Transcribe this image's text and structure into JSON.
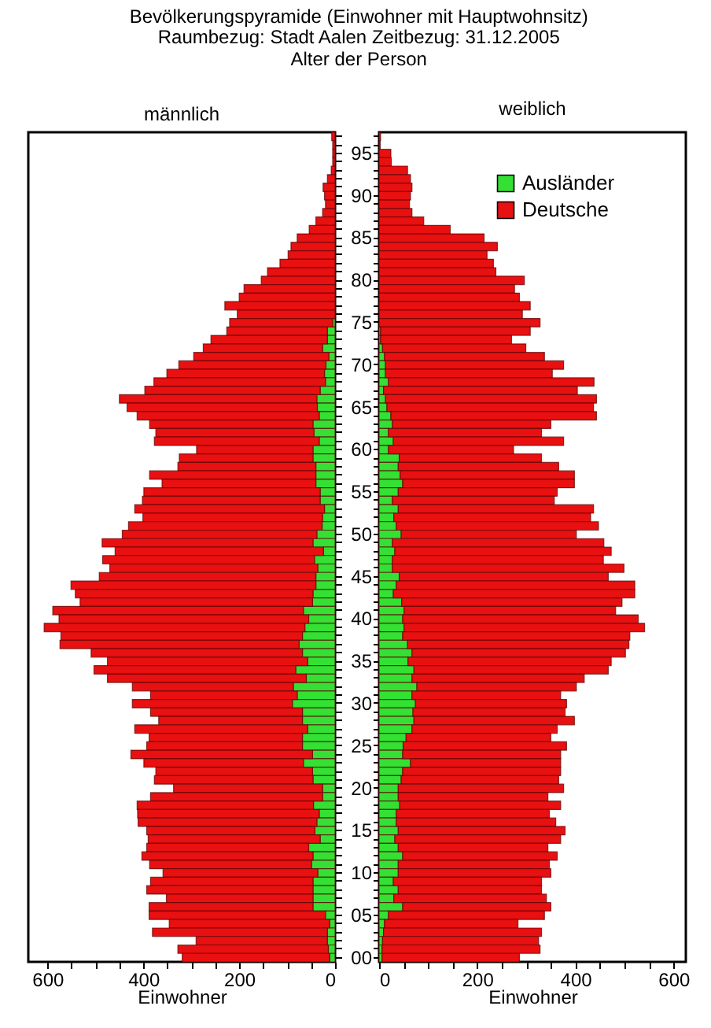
{
  "chart_data": [
    {
      "type": "bar",
      "orientation": "horizontal",
      "stacked": true,
      "title": "Bevölkerungspyramide (Einwohner mit Hauptwohnsitz)",
      "subtitle": "Raumbezug: Stadt Aalen    Zeitbezug: 31.12.2005",
      "annotations": [
        "männlich"
      ],
      "xlabel": "Einwohner",
      "tick_labels": "x",
      "grid": false,
      "legend": false,
      "categories": [
        null,
        null,
        "95",
        null,
        null,
        null,
        null,
        "90",
        null,
        null,
        null,
        null,
        "85",
        null,
        null,
        null,
        null,
        "80",
        null,
        null,
        null,
        null,
        "75",
        null,
        null,
        null,
        null,
        "70",
        null,
        null,
        null,
        null,
        "65",
        null,
        null,
        null,
        null,
        "60",
        null,
        null,
        null,
        null,
        "55",
        null,
        null,
        null,
        null,
        "50",
        null,
        null,
        null,
        null,
        "45",
        null,
        null,
        null,
        null,
        "40",
        null,
        null,
        null,
        null,
        "35",
        null,
        null,
        null,
        null,
        "30",
        null,
        null,
        null,
        null,
        "25",
        null,
        null,
        null,
        null,
        "20",
        null,
        null,
        null,
        null,
        "15",
        null,
        null,
        null,
        null,
        "10",
        null,
        null,
        null,
        null,
        "05",
        null,
        null,
        null,
        null,
        "00"
      ],
      "xlim": [
        640,
        0
      ],
      "xticks": [
        0,
        {
          "value": 50,
          "label": null
        },
        {
          "value": 100,
          "label": null
        },
        {
          "value": 150,
          "label": null
        },
        200,
        {
          "value": 250,
          "label": null
        },
        {
          "value": 300,
          "label": null
        },
        {
          "value": 350,
          "label": null
        },
        400,
        {
          "value": 450,
          "label": null
        },
        {
          "value": 500,
          "label": null
        },
        {
          "value": 550,
          "label": null
        },
        600
      ],
      "series": [
        {
          "color": "#33e033",
          "values": [
            null,
            null,
            null,
            null,
            null,
            null,
            null,
            null,
            null,
            null,
            null,
            null,
            null,
            null,
            null,
            null,
            null,
            null,
            null,
            null,
            null,
            null,
            5,
            16,
            16,
            26,
            13,
            19,
            22,
            20,
            31,
            38,
            37,
            33,
            46,
            44,
            33,
            46,
            46,
            40,
            40,
            40,
            31,
            31,
            22,
            26,
            27,
            38,
            46,
            24,
            43,
            36,
            40,
            40,
            46,
            47,
            66,
            55,
            63,
            68,
            75,
            68,
            57,
            82,
            60,
            87,
            79,
            89,
            68,
            68,
            57,
            68,
            68,
            47,
            66,
            47,
            46,
            26,
            26,
            45,
            33,
            38,
            42,
            31,
            55,
            46,
            49,
            36,
            46,
            46,
            46,
            46,
            20,
            11,
            16,
            16,
            14,
            11
          ]
        },
        {
          "color": "#e81010",
          "values": [
            7,
            5,
            5,
            5,
            8,
            16,
            25,
            22,
            20,
            26,
            40,
            54,
            79,
            92,
            98,
            115,
            141,
            154,
            190,
            200,
            230,
            204,
            215,
            210,
            243,
            249,
            282,
            307,
            329,
            358,
            366,
            412,
            397,
            380,
            341,
            330,
            344,
            243,
            279,
            288,
            347,
            321,
            368,
            371,
            396,
            375,
            404,
            406,
            440,
            435,
            442,
            434,
            452,
            511,
            496,
            485,
            523,
            521,
            544,
            504,
            499,
            441,
            418,
            421,
            415,
            336,
            306,
            334,
            317,
            300,
            361,
            320,
            325,
            379,
            333,
            327,
            331,
            311,
            359,
            368,
            379,
            373,
            351,
            359,
            338,
            357,
            338,
            323,
            339,
            347,
            306,
            342,
            368,
            335,
            365,
            274,
            314,
            308
          ]
        }
      ]
    },
    {
      "type": "bar",
      "orientation": "horizontal",
      "stacked": true,
      "annotations": [
        "weiblich"
      ],
      "ylabel": "Alter der Person",
      "xlabel": "Einwohner",
      "grid": false,
      "legend": "top right",
      "categories": [
        null,
        null,
        "95",
        null,
        null,
        null,
        null,
        "90",
        null,
        null,
        null,
        null,
        "85",
        null,
        null,
        null,
        null,
        "80",
        null,
        null,
        null,
        null,
        "75",
        null,
        null,
        null,
        null,
        "70",
        null,
        null,
        null,
        null,
        "65",
        null,
        null,
        null,
        null,
        "60",
        null,
        null,
        null,
        null,
        "55",
        null,
        null,
        null,
        null,
        "50",
        null,
        null,
        null,
        null,
        "45",
        null,
        null,
        null,
        null,
        "40",
        null,
        null,
        null,
        null,
        "35",
        null,
        null,
        null,
        null,
        "30",
        null,
        null,
        null,
        null,
        "25",
        null,
        null,
        null,
        null,
        "20",
        null,
        null,
        null,
        null,
        "15",
        null,
        null,
        null,
        null,
        "10",
        null,
        null,
        null,
        null,
        "05",
        null,
        null,
        null,
        null,
        "00"
      ],
      "xlim": [
        0,
        625
      ],
      "xticks": [
        0,
        {
          "value": 50,
          "label": null
        },
        {
          "value": 100,
          "label": null
        },
        {
          "value": 150,
          "label": null
        },
        200,
        {
          "value": 250,
          "label": null
        },
        {
          "value": 300,
          "label": null
        },
        {
          "value": 350,
          "label": null
        },
        400,
        {
          "value": 450,
          "label": null
        },
        {
          "value": 500,
          "label": null
        },
        {
          "value": 550,
          "label": null
        },
        600
      ],
      "series": [
        {
          "name": "Ausländer",
          "color": "#33e033",
          "values": [
            null,
            null,
            null,
            null,
            null,
            null,
            null,
            null,
            null,
            null,
            null,
            null,
            null,
            null,
            null,
            null,
            null,
            null,
            null,
            null,
            null,
            null,
            null,
            3,
            3,
            7,
            11,
            13,
            13,
            19,
            9,
            13,
            16,
            24,
            27,
            19,
            29,
            19,
            41,
            39,
            43,
            48,
            39,
            27,
            39,
            30,
            35,
            45,
            27,
            32,
            27,
            27,
            41,
            35,
            29,
            46,
            51,
            48,
            51,
            48,
            58,
            67,
            59,
            71,
            67,
            77,
            67,
            74,
            69,
            71,
            67,
            55,
            49,
            48,
            64,
            48,
            45,
            39,
            39,
            42,
            35,
            35,
            39,
            32,
            39,
            48,
            39,
            39,
            29,
            39,
            30,
            48,
            19,
            11,
            9,
            7,
            6,
            6
          ]
        },
        {
          "name": "Deutsche",
          "color": "#e81010",
          "values": [
            3,
            2,
            24,
            25,
            58,
            64,
            67,
            64,
            62,
            67,
            91,
            145,
            214,
            241,
            220,
            233,
            238,
            296,
            276,
            286,
            308,
            292,
            328,
            305,
            267,
            292,
            326,
            363,
            340,
            419,
            395,
            430,
            421,
            419,
            323,
            312,
            347,
            255,
            290,
            327,
            355,
            350,
            324,
            330,
            398,
            401,
            412,
            357,
            431,
            441,
            430,
            472,
            426,
            486,
            492,
            449,
            431,
            480,
            490,
            463,
            451,
            435,
            414,
            396,
            351,
            325,
            303,
            308,
            310,
            327,
            296,
            295,
            333,
            322,
            306,
            322,
            321,
            337,
            305,
            328,
            312,
            325,
            340,
            338,
            305,
            315,
            308,
            311,
            302,
            292,
            311,
            302,
            318,
            272,
            322,
            318,
            322,
            280
          ]
        }
      ]
    }
  ]
}
